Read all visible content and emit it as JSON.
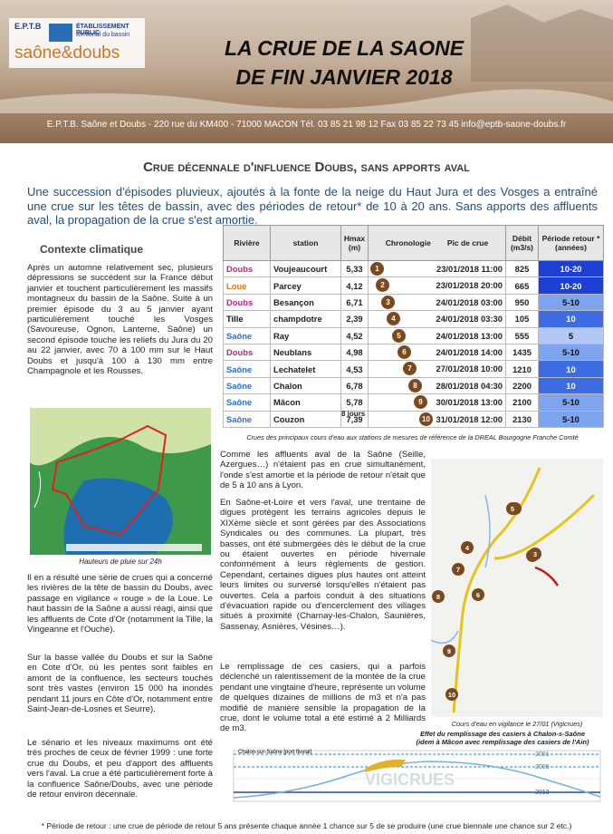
{
  "header": {
    "logo": {
      "abbr": "E.P.T.B",
      "line1": "ÉTABLISSEMENT PUBLIC",
      "line2": "territorial du bassin",
      "brand": "saône&doubs"
    },
    "title_line1": "LA CRUE DE LA SAONE",
    "title_line2": "DE FIN JANVIER 2018",
    "address": "E.P.T.B. Saône et Doubs  - 220 rue du KM400 - 71000 MACON Tél. 03 85 21 98 12  Fax 03 85 22 73 45 info@eptb-saone-doubs.fr"
  },
  "subtitle": "Crue décennale d'influence Doubs, sans apports aval",
  "intro": "Une succession d'épisodes pluvieux, ajoutés à la fonte de la neige du Haut Jura et des Vosges a entraîné une crue sur les têtes de bassin, avec des périodes de retour* de 10 à 20 ans. Sans apports des affluents aval, la propagation de la crue s'est amortie.",
  "left": {
    "heading": "Contexte climatique",
    "p1": "Après un automne relativement sec, plusieurs dépressions se succèdent sur la France début janvier et touchent particulièrement les massifs montagneux du bassin de la Saône. Suite à un premier épisode du 3 au 5 janvier ayant particulièrement touché les Vosges (Savoureuse, Ognon, Lanterne, Saône) un second épisode touche les reliefs du Jura du 20 au 22 janvier, avec 70 à 100 mm sur le Haut Doubs et jusqu'à 100 à 130 mm entre Champagnole et les Rousses.",
    "map_caption": "Hauteurs de pluie sur 24h",
    "p2": "Il en a résulté une série de crues qui a concerné les rivières de la tête de bassin du Doubs, avec passage en vigilance « rouge » de la Loue. Le haut bassin de la Saône a aussi réagi, ainsi que les affluents de Cote d'Or (notamment la Tille, la Vingeanne et l'Ouche).",
    "p3": "Sur la basse vallée du Doubs et sur la Saône en Cote d'Or, où les pentes sont faibles en amont de la confluence, les secteurs touchés sont très vastes (environ 15 000 ha inondés pendant 11 jours en Côte d'Or, notamment entre Saint-Jean-de-Losnes et Seurre).",
    "p4": "Le sénario et les niveaux maximums ont été très proches de ceux de février 1999 : une forte crue du Doubs, et peu d'apport des affluents vers l'aval. La crue a été particulièrement forte à la confluence Saône/Doubs, avec une période de retour environ décennale."
  },
  "table": {
    "headers": [
      "Rivière",
      "station",
      "Hmax (m)",
      "Chronologie",
      "Pic de crue",
      "Débit (m3/s)",
      "Période retour * (années)"
    ],
    "rows": [
      {
        "river": "Doubs",
        "station": "Voujeaucourt",
        "hmax": "5,33",
        "chrono": "1",
        "peak": "23/01/2018 11:00",
        "flow": "825",
        "period": "10-20"
      },
      {
        "river": "Loue",
        "station": "Parcey",
        "hmax": "4,12",
        "chrono": "2",
        "peak": "23/01/2018 20:00",
        "flow": "665",
        "period": "10-20"
      },
      {
        "river": "Doubs",
        "station": "Besançon",
        "hmax": "6,71",
        "chrono": "3",
        "peak": "24/01/2018 03:00",
        "flow": "950",
        "period": "5-10"
      },
      {
        "river": "Tille",
        "station": "champdotre",
        "hmax": "2,39",
        "chrono": "4",
        "peak": "24/01/2018 03:30",
        "flow": "105",
        "period": "10"
      },
      {
        "river": "Saône",
        "station": "Ray",
        "hmax": "4,52",
        "chrono": "5",
        "peak": "24/01/2018 13:00",
        "flow": "555",
        "period": "5"
      },
      {
        "river": "Doubs",
        "station": "Neublans",
        "hmax": "4,98",
        "chrono": "6",
        "peak": "24/01/2018 14:00",
        "flow": "1435",
        "period": "5-10"
      },
      {
        "river": "Saône",
        "station": "Lechatelet",
        "hmax": "4,53",
        "chrono": "7",
        "peak": "27/01/2018 10:00",
        "flow": "1210",
        "period": "10"
      },
      {
        "river": "Saône",
        "station": "Chalon",
        "hmax": "6,78",
        "chrono": "8",
        "peak": "28/01/2018 04:30",
        "flow": "2200",
        "period": "10"
      },
      {
        "river": "Saône",
        "station": "Mâcon",
        "hmax": "5,78",
        "chrono": "9",
        "peak": "30/01/2018 13:00",
        "flow": "2100",
        "period": "5-10"
      },
      {
        "river": "Saône",
        "station": "Couzon",
        "hmax": "7,39",
        "chrono": "10",
        "peak": "31/01/2018 12:00",
        "flow": "2130",
        "period": "5-10"
      }
    ],
    "duration": "8 jours",
    "caption": "Crues des principaux cours d'eau aux stations de mesures de référence de la DREAL Bourgogne Franche Comté"
  },
  "middle": {
    "p1": "Comme les affluents aval de la Saône (Seille, Azergues…) n'étaient pas en crue simultanément, l'onde s'est amortie et la période de retour n'était que de 5 à 10 ans à Lyon.",
    "p2": "En Saône-et-Loire et vers l'aval, une trentaine de digues protègent les terrains agricoles depuis le XIXème siècle et sont gérées par des Associations Syndicales ou des communes. La plupart, très basses, ont été submergées dès le début de la crue ou étaient ouvertes en période hivernale conformément à leurs règlements de gestion. Cependant, certaines digues plus hautes ont atteint leurs limites ou surversé lorsqu'elles n'étaient pas ouvertes. Cela a parfois conduit à des situations d'évacuation rapide ou d'encerclement des villages situés à proximité (Charnay-les-Chalon, Saunières, Sassenay, Asnières, Vésines…).",
    "p3": "Le remplissage de ces casiers, qui a parfois déclenché un ralentissement de la montée de la crue pendant une vingtaine d'heure, représente un volume de quelques dizaines de millions de m3 et n'a pas modifié de manière sensible la propagation de la crue, dont le volume total a été estimé à 2 Milliards de m3."
  },
  "right_map": {
    "markers": [
      "1",
      "2",
      "3",
      "4",
      "5",
      "6",
      "7",
      "8",
      "9",
      "10"
    ],
    "caption": "Cours d'eau en vigilance le 27/01 (Vigicrues)"
  },
  "hydrograph": {
    "caption_line1": "Effet du remplissage des casiers à Chalon-s-Saône",
    "caption_line2": "(idem à Mâcon avec remplissage des casiers de l'Ain)",
    "station": "Chalon-sur-Saône [port fluvial]",
    "watermark": "VIGICRUES",
    "levels": [
      "2001",
      "2006",
      "2013"
    ]
  },
  "footnote": "* Période de retour : une crue de période de retour 5 ans présente chaque année 1 chance sur 5 de se produire (une crue biennale une chance sur 2 etc.)"
}
